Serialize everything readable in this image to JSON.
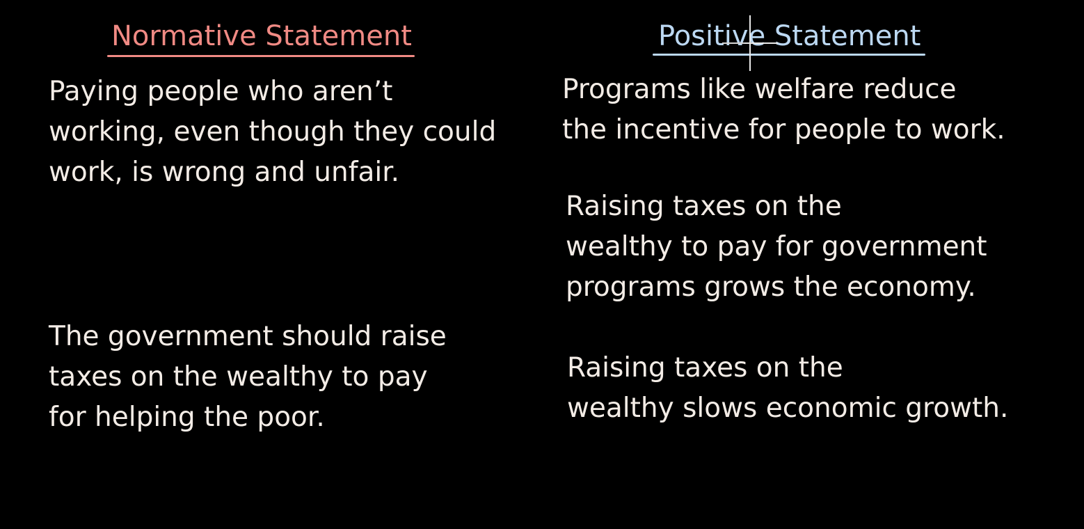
{
  "normative": {
    "heading": "Normative Statement",
    "heading_color": "#f08a84",
    "statements": [
      {
        "lines": [
          "Paying people who aren’t",
          "working, even though they could",
          "work, is wrong and unfair."
        ]
      },
      {
        "lines": [
          "The government should raise",
          "taxes on the wealthy to pay",
          "for helping the poor."
        ]
      }
    ]
  },
  "positive": {
    "heading": "Positive Statement",
    "heading_color": "#bcd8f2",
    "statements": [
      {
        "lines": [
          "Programs like welfare reduce",
          "the incentive for people to work."
        ]
      },
      {
        "lines": [
          "Raising taxes on the",
          "wealthy to pay for government",
          "programs grows the economy."
        ]
      },
      {
        "lines": [
          "Raising taxes on the",
          "wealthy slows economic growth."
        ]
      }
    ]
  },
  "text_color": "#f3ece6",
  "background_color": "#000000",
  "cursor_icon": "crosshair-cursor-icon"
}
